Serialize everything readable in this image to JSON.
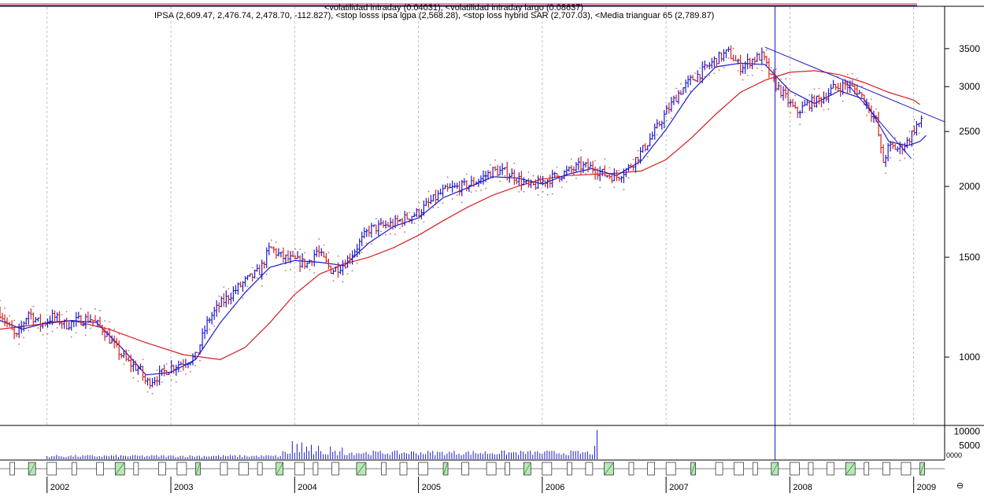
{
  "header": {
    "top_legend": "<volatilidad intraday (0.04031), <volatilidad intraday largo (0.08637)",
    "legend": "IPSA (2,609.47, 2,476.74, 2,478.70, -112.827), <stop losss ipsa lgpa (2,568.28), <stop loss hybrid SAR (2,707.03), <Media trianguar 65 (2,789.87)"
  },
  "colors": {
    "up": "#1a1acc",
    "down": "#d42020",
    "ma_long": "#d42020",
    "ma_short": "#1a1acc",
    "sar": "#c07070",
    "trend": "#1a1acc",
    "grid": "#b0b0b0"
  },
  "chart_data": {
    "type": "ohlc",
    "y_scale": "log",
    "ylim": [
      760,
      3900
    ],
    "y_ticks": [
      "3500",
      "3000",
      "2500",
      "2000",
      "1500",
      "1000"
    ],
    "y_tick_values": [
      3500,
      3000,
      2500,
      2000,
      1500,
      1000
    ],
    "volume_ticks": [
      "10000",
      "5000",
      "0000"
    ],
    "volume_tick_values": [
      10000,
      5000,
      0
    ],
    "x_range": [
      2001.62,
      2009.25
    ],
    "x_labels": [
      "2002",
      "2003",
      "2004",
      "2005",
      "2006",
      "2007",
      "2008",
      "2009"
    ],
    "x_label_values": [
      2002,
      2003,
      2004,
      2005,
      2006,
      2007,
      2008,
      2009
    ],
    "price_path": [
      [
        2001.62,
        1200
      ],
      [
        2001.75,
        1080
      ],
      [
        2001.85,
        1200
      ],
      [
        2001.95,
        1140
      ],
      [
        2002.05,
        1180
      ],
      [
        2002.15,
        1140
      ],
      [
        2002.25,
        1160
      ],
      [
        2002.35,
        1170
      ],
      [
        2002.45,
        1120
      ],
      [
        2002.55,
        1040
      ],
      [
        2002.65,
        980
      ],
      [
        2002.75,
        950
      ],
      [
        2002.8,
        900
      ],
      [
        2002.88,
        920
      ],
      [
        2003.0,
        960
      ],
      [
        2003.1,
        980
      ],
      [
        2003.2,
        1000
      ],
      [
        2003.3,
        1160
      ],
      [
        2003.4,
        1240
      ],
      [
        2003.5,
        1300
      ],
      [
        2003.6,
        1360
      ],
      [
        2003.72,
        1420
      ],
      [
        2003.8,
        1560
      ],
      [
        2003.9,
        1500
      ],
      [
        2004.0,
        1480
      ],
      [
        2004.1,
        1460
      ],
      [
        2004.18,
        1540
      ],
      [
        2004.3,
        1420
      ],
      [
        2004.4,
        1460
      ],
      [
        2004.5,
        1560
      ],
      [
        2004.6,
        1680
      ],
      [
        2004.7,
        1700
      ],
      [
        2004.8,
        1720
      ],
      [
        2004.9,
        1760
      ],
      [
        2005.0,
        1800
      ],
      [
        2005.1,
        1880
      ],
      [
        2005.2,
        1960
      ],
      [
        2005.3,
        1990
      ],
      [
        2005.4,
        2010
      ],
      [
        2005.5,
        2060
      ],
      [
        2005.6,
        2130
      ],
      [
        2005.7,
        2120
      ],
      [
        2005.8,
        2070
      ],
      [
        2005.9,
        1990
      ],
      [
        2006.0,
        2040
      ],
      [
        2006.1,
        2080
      ],
      [
        2006.2,
        2120
      ],
      [
        2006.3,
        2170
      ],
      [
        2006.4,
        2160
      ],
      [
        2006.5,
        2100
      ],
      [
        2006.6,
        2080
      ],
      [
        2006.7,
        2160
      ],
      [
        2006.8,
        2300
      ],
      [
        2006.9,
        2480
      ],
      [
        2007.0,
        2700
      ],
      [
        2007.1,
        2920
      ],
      [
        2007.2,
        3080
      ],
      [
        2007.3,
        3200
      ],
      [
        2007.4,
        3350
      ],
      [
        2007.5,
        3450
      ],
      [
        2007.6,
        3250
      ],
      [
        2007.7,
        3350
      ],
      [
        2007.78,
        3400
      ],
      [
        2007.85,
        3100
      ],
      [
        2007.95,
        2900
      ],
      [
        2008.05,
        2700
      ],
      [
        2008.15,
        2800
      ],
      [
        2008.25,
        2850
      ],
      [
        2008.35,
        2980
      ],
      [
        2008.45,
        3020
      ],
      [
        2008.55,
        2950
      ],
      [
        2008.62,
        2800
      ],
      [
        2008.7,
        2600
      ],
      [
        2008.75,
        2200
      ],
      [
        2008.8,
        2350
      ],
      [
        2008.88,
        2330
      ],
      [
        2008.95,
        2400
      ],
      [
        2009.02,
        2560
      ],
      [
        2009.08,
        2609
      ]
    ],
    "ma_long": [
      [
        2001.62,
        1120
      ],
      [
        2001.9,
        1140
      ],
      [
        2002.2,
        1160
      ],
      [
        2002.5,
        1120
      ],
      [
        2002.8,
        1060
      ],
      [
        2003.1,
        1010
      ],
      [
        2003.4,
        990
      ],
      [
        2003.6,
        1040
      ],
      [
        2003.8,
        1150
      ],
      [
        2004.0,
        1290
      ],
      [
        2004.2,
        1400
      ],
      [
        2004.4,
        1460
      ],
      [
        2004.6,
        1500
      ],
      [
        2004.8,
        1560
      ],
      [
        2005.0,
        1640
      ],
      [
        2005.2,
        1740
      ],
      [
        2005.4,
        1840
      ],
      [
        2005.6,
        1930
      ],
      [
        2005.8,
        2000
      ],
      [
        2006.0,
        2060
      ],
      [
        2006.2,
        2090
      ],
      [
        2006.4,
        2100
      ],
      [
        2006.6,
        2110
      ],
      [
        2006.8,
        2130
      ],
      [
        2007.0,
        2230
      ],
      [
        2007.2,
        2430
      ],
      [
        2007.4,
        2680
      ],
      [
        2007.6,
        2930
      ],
      [
        2007.8,
        3080
      ],
      [
        2008.0,
        3180
      ],
      [
        2008.2,
        3200
      ],
      [
        2008.4,
        3150
      ],
      [
        2008.6,
        3050
      ],
      [
        2008.8,
        2930
      ],
      [
        2009.0,
        2840
      ],
      [
        2009.05,
        2790
      ]
    ],
    "ma_short": [
      [
        2001.62,
        1160
      ],
      [
        2001.8,
        1120
      ],
      [
        2002.0,
        1150
      ],
      [
        2002.2,
        1160
      ],
      [
        2002.4,
        1150
      ],
      [
        2002.6,
        1040
      ],
      [
        2002.8,
        930
      ],
      [
        2003.0,
        940
      ],
      [
        2003.2,
        990
      ],
      [
        2003.4,
        1150
      ],
      [
        2003.6,
        1300
      ],
      [
        2003.8,
        1440
      ],
      [
        2004.0,
        1480
      ],
      [
        2004.2,
        1470
      ],
      [
        2004.4,
        1450
      ],
      [
        2004.6,
        1590
      ],
      [
        2004.8,
        1700
      ],
      [
        2005.0,
        1760
      ],
      [
        2005.2,
        1910
      ],
      [
        2005.4,
        1990
      ],
      [
        2005.6,
        2080
      ],
      [
        2005.8,
        2070
      ],
      [
        2006.0,
        2020
      ],
      [
        2006.2,
        2100
      ],
      [
        2006.4,
        2150
      ],
      [
        2006.6,
        2090
      ],
      [
        2006.8,
        2220
      ],
      [
        2007.0,
        2520
      ],
      [
        2007.2,
        2930
      ],
      [
        2007.4,
        3250
      ],
      [
        2007.6,
        3300
      ],
      [
        2007.8,
        3280
      ],
      [
        2008.0,
        2950
      ],
      [
        2008.2,
        2800
      ],
      [
        2008.4,
        2950
      ],
      [
        2008.6,
        2850
      ],
      [
        2008.8,
        2400
      ],
      [
        2008.95,
        2360
      ],
      [
        2009.05,
        2400
      ],
      [
        2009.1,
        2460
      ]
    ],
    "trendlines": [
      [
        [
          2007.8,
          3520
        ],
        [
          2009.25,
          2600
        ]
      ],
      [
        [
          2008.45,
          3060
        ],
        [
          2008.98,
          2240
        ]
      ]
    ],
    "vertical_marker_x": 2007.88,
    "volume_bars": [
      [
        2003.98,
        6500
      ],
      [
        2004.01,
        5500
      ],
      [
        2004.05,
        6000
      ],
      [
        2004.09,
        4500
      ],
      [
        2004.14,
        5200
      ],
      [
        2004.19,
        4800
      ],
      [
        2004.28,
        4600
      ],
      [
        2004.38,
        4200
      ],
      [
        2006.42,
        4800
      ],
      [
        2006.45,
        10500
      ]
    ],
    "volume_base": 2400
  },
  "time_ribbon": {
    "marks": [
      2001.7,
      2001.85,
      2002.0,
      2002.2,
      2002.4,
      2002.55,
      2002.7,
      2002.9,
      2003.05,
      2003.2,
      2003.4,
      2003.55,
      2003.7,
      2003.85,
      2004.0,
      2004.15,
      2004.3,
      2004.5,
      2004.7,
      2004.85,
      2005.0,
      2005.2,
      2005.35,
      2005.55,
      2005.7,
      2005.85,
      2006.0,
      2006.2,
      2006.35,
      2006.5,
      2006.7,
      2006.85,
      2007.0,
      2007.2,
      2007.4,
      2007.55,
      2007.7,
      2007.85,
      2008.0,
      2008.15,
      2008.3,
      2008.45,
      2008.6,
      2008.75,
      2008.9,
      2009.05
    ]
  }
}
